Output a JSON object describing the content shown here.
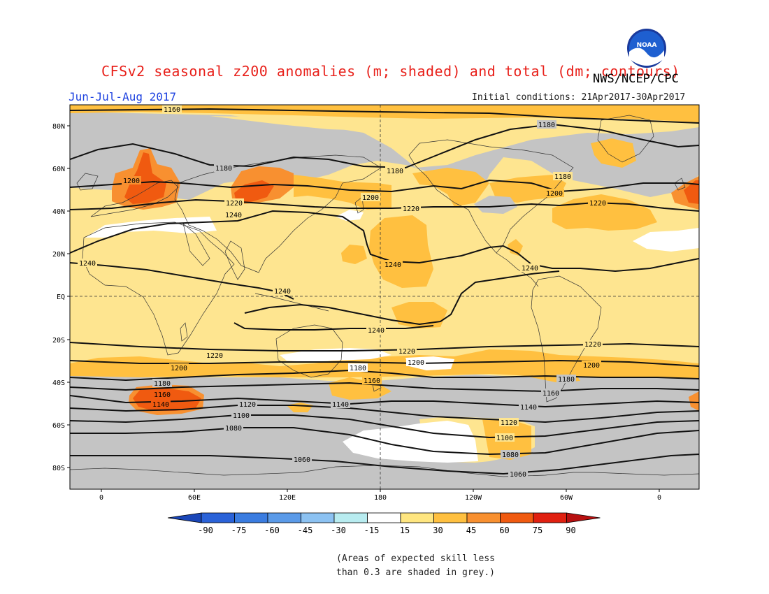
{
  "title": "CFSv2 seasonal z200 anomalies (m; shaded) and total (dm; contours)",
  "agency": "NWS/NCEP/CPC",
  "season": "Jun-Jul-Aug 2017",
  "initial_conditions": "Initial conditions: 21Apr2017-30Apr2017",
  "logo_text": "NOAA",
  "lat_labels": [
    "80N",
    "60N",
    "40N",
    "20N",
    "EQ",
    "20S",
    "40S",
    "60S",
    "80S"
  ],
  "lon_labels": [
    "0",
    "60E",
    "120E",
    "180",
    "120W",
    "60W",
    "0"
  ],
  "colorbar": {
    "labels": [
      "-90",
      "-75",
      "-60",
      "-45",
      "-30",
      "-15",
      "15",
      "30",
      "45",
      "60",
      "75",
      "90"
    ],
    "colors": [
      "#1a46b8",
      "#2a62d8",
      "#3a7ce0",
      "#5a9ae8",
      "#8cc2f2",
      "#b8ecf0",
      "#ffffff",
      "#ffe680",
      "#ffc040",
      "#f89030",
      "#f05a10",
      "#e02010",
      "#b81010"
    ]
  },
  "contour_labels": [
    "1160",
    "1180",
    "1180",
    "1180",
    "1180",
    "1200",
    "1200",
    "1200",
    "1220",
    "1220",
    "1220",
    "1240",
    "1240",
    "1240",
    "1240",
    "1240",
    "1240",
    "1220",
    "1220",
    "1220",
    "1200",
    "1200",
    "1200",
    "1180",
    "1180",
    "1180",
    "1160",
    "1160",
    "1160",
    "1140",
    "1140",
    "1140",
    "1120",
    "1120",
    "1100",
    "1100",
    "1080",
    "1080",
    "1060",
    "1060"
  ],
  "note_line1": "(Areas of expected skill less",
  "note_line2": "than 0.3 are shaded in grey.)",
  "colors": {
    "land_default": "#fee590",
    "low_skill": "#c4c4c4",
    "anomaly_15_30": "#ffe680",
    "anomaly_30_45": "#ffc040",
    "anomaly_45_60": "#f89030",
    "anomaly_60_75": "#f05a10",
    "neutral": "#ffffff"
  }
}
